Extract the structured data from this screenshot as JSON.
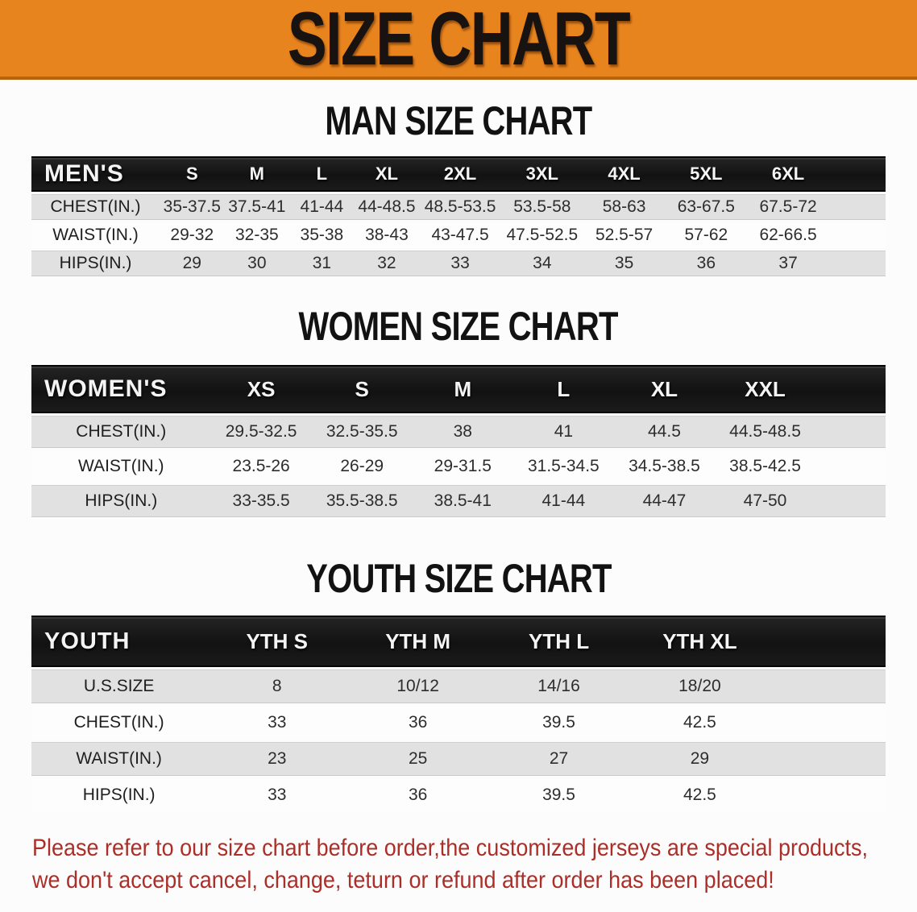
{
  "theme": {
    "banner-bg": "#e8841e",
    "banner-edge": "#b5650f",
    "header-bg": "#171717",
    "stripe": "#e1e1e1",
    "accent-red": "#ab2f28"
  },
  "banner": {
    "title": "SIZE CHART"
  },
  "sections": {
    "men": {
      "title": "MAN SIZE CHART",
      "table": {
        "label": "MEN'S",
        "sizes": [
          "S",
          "M",
          "L",
          "XL",
          "2XL",
          "3XL",
          "4XL",
          "5XL",
          "6XL"
        ],
        "rows": [
          {
            "label": "CHEST(IN.)",
            "values": [
              "35-37.5",
              "37.5-41",
              "41-44",
              "44-48.5",
              "48.5-53.5",
              "53.5-58",
              "58-63",
              "63-67.5",
              "67.5-72"
            ]
          },
          {
            "label": "WAIST(IN.)",
            "values": [
              "29-32",
              "32-35",
              "35-38",
              "38-43",
              "43-47.5",
              "47.5-52.5",
              "52.5-57",
              "57-62",
              "62-66.5"
            ]
          },
          {
            "label": "HIPS(IN.)",
            "values": [
              "29",
              "30",
              "31",
              "32",
              "33",
              "34",
              "35",
              "36",
              "37"
            ]
          }
        ]
      }
    },
    "women": {
      "title": "WOMEN SIZE CHART",
      "table": {
        "label": "WOMEN'S",
        "sizes": [
          "XS",
          "S",
          "M",
          "L",
          "XL",
          "XXL"
        ],
        "rows": [
          {
            "label": "CHEST(IN.)",
            "values": [
              "29.5-32.5",
              "32.5-35.5",
              "38",
              "41",
              "44.5",
              "44.5-48.5"
            ]
          },
          {
            "label": "WAIST(IN.)",
            "values": [
              "23.5-26",
              "26-29",
              "29-31.5",
              "31.5-34.5",
              "34.5-38.5",
              "38.5-42.5"
            ]
          },
          {
            "label": "HIPS(IN.)",
            "values": [
              "33-35.5",
              "35.5-38.5",
              "38.5-41",
              "41-44",
              "44-47",
              "47-50"
            ]
          }
        ]
      }
    },
    "youth": {
      "title": "YOUTH SIZE CHART",
      "table": {
        "label": "YOUTH",
        "sizes": [
          "YTH S",
          "YTH M",
          "YTH L",
          "YTH XL"
        ],
        "rows": [
          {
            "label": "U.S.SIZE",
            "values": [
              "8",
              "10/12",
              "14/16",
              "18/20"
            ]
          },
          {
            "label": "CHEST(IN.)",
            "values": [
              "33",
              "36",
              "39.5",
              "42.5"
            ]
          },
          {
            "label": "WAIST(IN.)",
            "values": [
              "23",
              "25",
              "27",
              "29"
            ]
          },
          {
            "label": "HIPS(IN.)",
            "values": [
              "33",
              "36",
              "39.5",
              "42.5"
            ]
          }
        ]
      }
    }
  },
  "disclaimer": {
    "line1": "Please refer to our size chart before order,the customized jerseys are special products,",
    "line2": "we don't accept cancel, change, teturn or refund after order has been placed!"
  }
}
